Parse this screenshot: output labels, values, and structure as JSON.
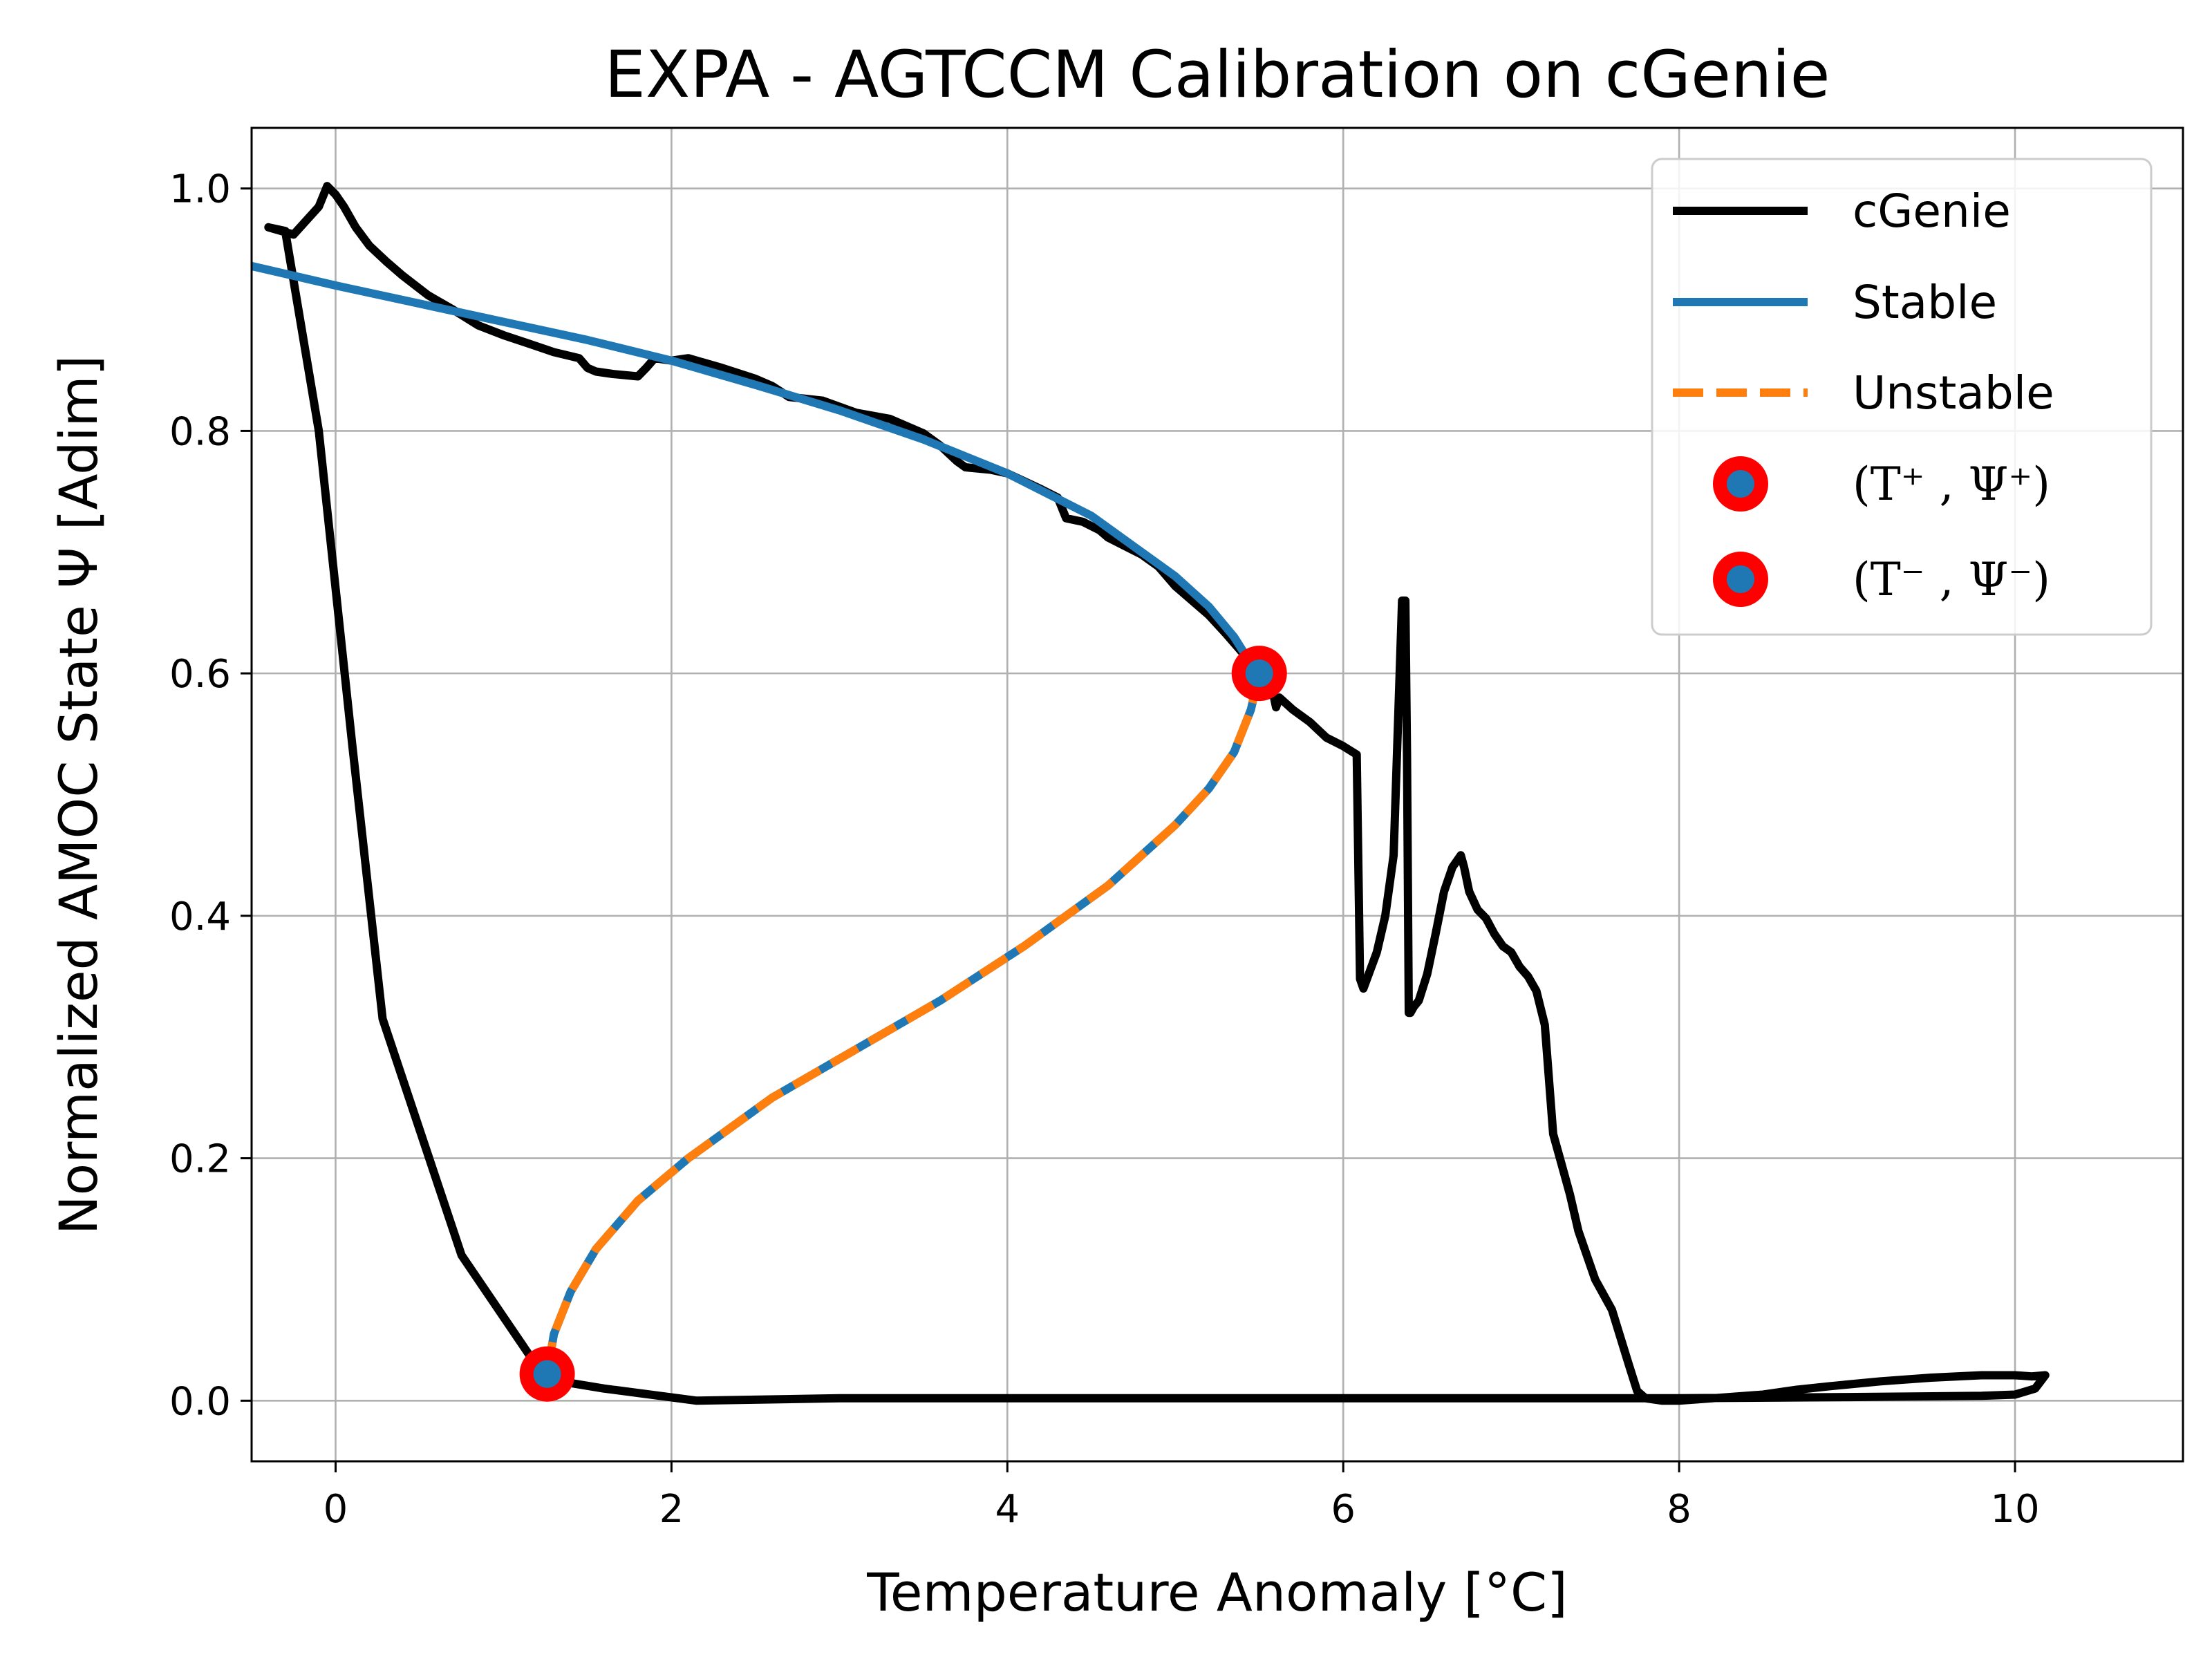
{
  "chart_data": {
    "type": "line",
    "title": "EXPA - AGTCCM Calibration on cGenie",
    "xlabel": "Temperature Anomaly [°C]",
    "ylabel": "Normalized AMOC State Ψ [Adim]",
    "xlim": [
      -0.5,
      11.0
    ],
    "ylim": [
      -0.05,
      1.05
    ],
    "xticks": [
      0,
      2,
      4,
      6,
      8,
      10
    ],
    "xtick_labels": [
      "0",
      "2",
      "4",
      "6",
      "8",
      "10"
    ],
    "yticks": [
      0.0,
      0.2,
      0.4,
      0.6,
      0.8,
      1.0
    ],
    "ytick_labels": [
      "0.0",
      "0.2",
      "0.4",
      "0.6",
      "0.8",
      "1.0"
    ],
    "grid": true,
    "legend_position": "top-right",
    "colors": {
      "cgenie": "#000000",
      "stable": "#1f77b4",
      "unstable": "#ff7f0e",
      "marker_edge": "#ff0000",
      "marker_face": "#1f77b4",
      "grid": "#b0b0b0"
    },
    "series": [
      {
        "name": "cGenie",
        "style": "solid",
        "x": [
          -0.4,
          -0.25,
          -0.1,
          -0.05,
          0.0,
          0.05,
          0.12,
          0.2,
          0.3,
          0.4,
          0.55,
          0.7,
          0.85,
          1.0,
          1.15,
          1.3,
          1.45,
          1.5,
          1.55,
          1.65,
          1.8,
          1.85,
          1.9,
          2.0,
          2.1,
          2.3,
          2.5,
          2.6,
          2.7,
          2.9,
          3.1,
          3.3,
          3.5,
          3.6,
          3.7,
          3.75,
          3.9,
          4.0,
          4.2,
          4.3,
          4.35,
          4.45,
          4.55,
          4.6,
          4.7,
          4.8,
          4.9,
          5.0,
          5.1,
          5.2,
          5.3,
          5.4,
          5.5,
          5.58,
          5.6,
          5.62,
          5.7,
          5.8,
          5.9,
          6.0,
          6.08,
          6.1,
          6.12,
          6.2,
          6.25,
          6.3,
          6.35,
          6.37,
          6.38,
          6.39,
          6.4,
          6.42,
          6.45,
          6.5,
          6.55,
          6.6,
          6.65,
          6.7,
          6.72,
          6.75,
          6.8,
          6.85,
          6.9,
          6.95,
          7.0,
          7.05,
          7.1,
          7.15,
          7.2,
          7.25,
          7.3,
          7.35,
          7.4,
          7.5,
          7.6,
          7.7,
          7.75,
          7.8,
          7.9,
          8.0,
          8.2,
          8.5,
          8.7,
          8.9,
          9.2,
          9.5,
          9.8,
          10.0,
          10.1,
          10.18,
          10.12,
          10.0,
          9.8,
          9.0,
          8.0,
          7.0,
          6.0,
          5.0,
          4.0,
          3.0,
          2.15,
          1.6,
          1.25,
          0.75,
          0.28,
          0.1,
          -0.1,
          -0.3,
          -0.4
        ],
        "y": [
          0.968,
          0.962,
          0.985,
          1.002,
          0.995,
          0.985,
          0.968,
          0.953,
          0.94,
          0.928,
          0.912,
          0.9,
          0.887,
          0.879,
          0.872,
          0.865,
          0.86,
          0.852,
          0.849,
          0.847,
          0.845,
          0.852,
          0.86,
          0.858,
          0.86,
          0.852,
          0.843,
          0.837,
          0.828,
          0.825,
          0.815,
          0.81,
          0.798,
          0.788,
          0.775,
          0.77,
          0.768,
          0.765,
          0.752,
          0.745,
          0.728,
          0.725,
          0.718,
          0.712,
          0.705,
          0.698,
          0.688,
          0.672,
          0.66,
          0.648,
          0.633,
          0.617,
          0.6,
          0.585,
          0.572,
          0.58,
          0.57,
          0.56,
          0.547,
          0.54,
          0.533,
          0.348,
          0.34,
          0.37,
          0.4,
          0.45,
          0.66,
          0.66,
          0.53,
          0.32,
          0.32,
          0.325,
          0.33,
          0.352,
          0.385,
          0.42,
          0.44,
          0.45,
          0.44,
          0.42,
          0.405,
          0.398,
          0.385,
          0.375,
          0.37,
          0.358,
          0.35,
          0.338,
          0.31,
          0.22,
          0.195,
          0.17,
          0.14,
          0.1,
          0.075,
          0.03,
          0.008,
          0.002,
          0.0,
          0.0,
          0.002,
          0.005,
          0.009,
          0.012,
          0.016,
          0.019,
          0.021,
          0.021,
          0.02,
          0.021,
          0.01,
          0.005,
          0.004,
          0.003,
          0.002,
          0.002,
          0.002,
          0.002,
          0.002,
          0.002,
          0.0,
          0.01,
          0.018,
          0.12,
          0.315,
          0.54,
          0.8,
          0.965,
          0.968
        ]
      },
      {
        "name": "Stable",
        "style": "solid",
        "x": [
          -0.5,
          0.0,
          0.5,
          1.0,
          1.5,
          2.0,
          2.5,
          3.0,
          3.5,
          4.0,
          4.5,
          5.0,
          5.2,
          5.35,
          5.45,
          5.5
        ],
        "y": [
          0.936,
          0.92,
          0.905,
          0.89,
          0.875,
          0.858,
          0.838,
          0.817,
          0.793,
          0.765,
          0.73,
          0.68,
          0.655,
          0.63,
          0.608,
          0.6
        ]
      },
      {
        "name": "Unstable",
        "style": "dashed",
        "x": [
          5.5,
          5.45,
          5.35,
          5.2,
          5.0,
          4.6,
          4.1,
          3.6,
          3.1,
          2.6,
          2.1,
          1.8,
          1.55,
          1.4,
          1.3,
          1.26
        ],
        "y": [
          0.6,
          0.57,
          0.535,
          0.505,
          0.475,
          0.425,
          0.375,
          0.33,
          0.29,
          0.25,
          0.2,
          0.165,
          0.125,
          0.09,
          0.055,
          0.022
        ]
      }
    ],
    "points": [
      {
        "label": "(T⁺ , Ψ⁺)",
        "x": 5.5,
        "y": 0.6
      },
      {
        "label": "(T⁻ , Ψ⁻)",
        "x": 1.26,
        "y": 0.022
      }
    ]
  }
}
